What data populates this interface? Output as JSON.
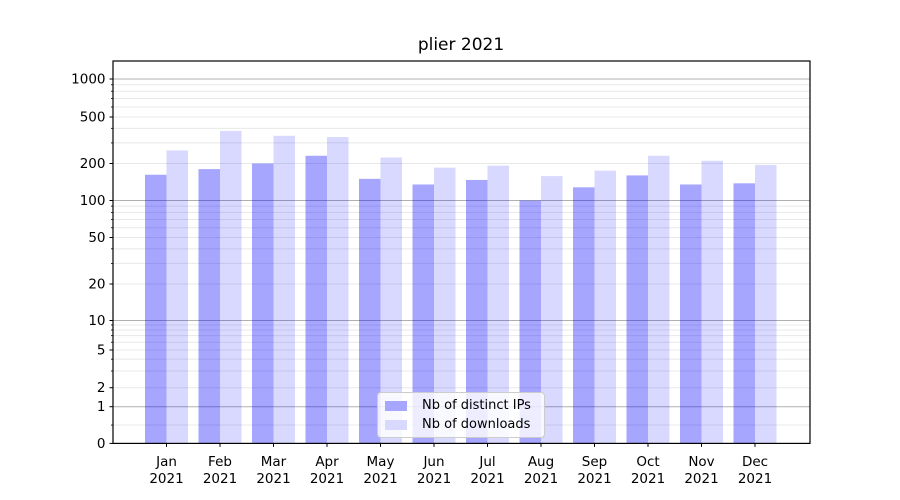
{
  "chart_data": {
    "type": "bar",
    "title": "plier 2021",
    "categories": [
      "Jan",
      "Feb",
      "Mar",
      "Apr",
      "May",
      "Jun",
      "Jul",
      "Aug",
      "Sep",
      "Oct",
      "Nov",
      "Dec"
    ],
    "x_year_label": "2021",
    "series": [
      {
        "name": "Nb of distinct IPs",
        "color": "rgba(0,0,255,0.35)",
        "color_hex": "#a6a6ff",
        "values": [
          162,
          180,
          200,
          233,
          150,
          135,
          147,
          100,
          128,
          160,
          135,
          138
        ]
      },
      {
        "name": "Nb of downloads",
        "color": "rgba(0,0,255,0.15)",
        "color_hex": "#d9d9ff",
        "values": [
          259,
          380,
          345,
          337,
          225,
          185,
          192,
          158,
          175,
          233,
          211,
          195
        ]
      }
    ],
    "ylabel": "",
    "xlabel": "",
    "yscale": "symlog",
    "ylim": [
      0,
      1400
    ],
    "y_ticks_labeled": [
      0,
      1,
      2,
      5,
      10,
      20,
      50,
      100,
      200,
      500,
      1000
    ],
    "y_major_gridline_values": [
      1,
      10,
      100,
      1000
    ],
    "y_minor_gridline_values": [
      0.5,
      2,
      3,
      4,
      5,
      6,
      7,
      8,
      9,
      20,
      30,
      40,
      50,
      60,
      70,
      80,
      90,
      200,
      300,
      400,
      500,
      600,
      700,
      800,
      900
    ],
    "grid": true,
    "legend_position": "lower center",
    "colors": {
      "background": "#ffffff",
      "axis": "#000000",
      "tick_text": "#000000",
      "grid_major": "#b0b0b0",
      "grid_minor": "#e8e8e8",
      "title_text": "#000000"
    }
  }
}
